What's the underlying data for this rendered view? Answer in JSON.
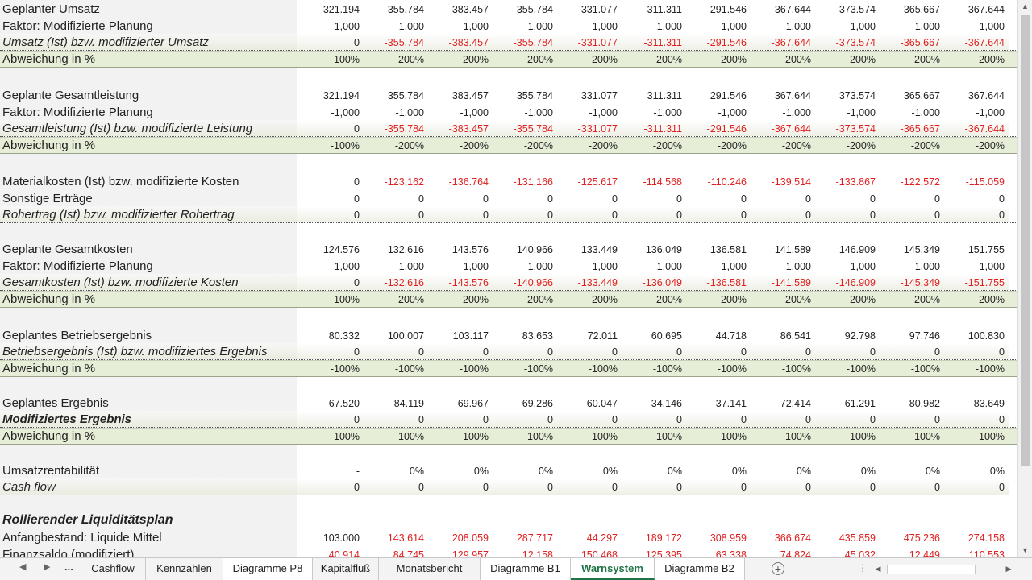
{
  "rows": [
    {
      "label": "Geplanter Umsatz",
      "style": "",
      "values": [
        "321.194",
        "355.784",
        "383.457",
        "355.784",
        "331.077",
        "311.311",
        "291.546",
        "367.644",
        "373.574",
        "365.667",
        "367.644"
      ],
      "red": []
    },
    {
      "label": "Faktor: Modifizierte Planung",
      "style": "",
      "values": [
        "-1,000",
        "-1,000",
        "-1,000",
        "-1,000",
        "-1,000",
        "-1,000",
        "-1,000",
        "-1,000",
        "-1,000",
        "-1,000",
        "-1,000"
      ],
      "red": []
    },
    {
      "label": "Umsatz (Ist) bzw. modifizierter Umsatz",
      "style": "italic dotted",
      "values": [
        "0",
        "-355.784",
        "-383.457",
        "-355.784",
        "-331.077",
        "-311.311",
        "-291.546",
        "-367.644",
        "-373.574",
        "-365.667",
        "-367.644"
      ],
      "red": [
        1,
        2,
        3,
        4,
        5,
        6,
        7,
        8,
        9,
        10
      ]
    },
    {
      "label": "Abweichung in %",
      "style": "dev",
      "values": [
        "-100%",
        "-200%",
        "-200%",
        "-200%",
        "-200%",
        "-200%",
        "-200%",
        "-200%",
        "-200%",
        "-200%",
        "-200%"
      ],
      "red": []
    },
    {
      "label": "Geplante Gesamtleistung",
      "style": "",
      "values": [
        "321.194",
        "355.784",
        "383.457",
        "355.784",
        "331.077",
        "311.311",
        "291.546",
        "367.644",
        "373.574",
        "365.667",
        "367.644"
      ],
      "red": []
    },
    {
      "label": "Faktor: Modifizierte Planung",
      "style": "",
      "values": [
        "-1,000",
        "-1,000",
        "-1,000",
        "-1,000",
        "-1,000",
        "-1,000",
        "-1,000",
        "-1,000",
        "-1,000",
        "-1,000",
        "-1,000"
      ],
      "red": []
    },
    {
      "label": "Gesamtleistung (Ist) bzw. modifizierte Leistung",
      "style": "italic dotted",
      "values": [
        "0",
        "-355.784",
        "-383.457",
        "-355.784",
        "-331.077",
        "-311.311",
        "-291.546",
        "-367.644",
        "-373.574",
        "-365.667",
        "-367.644"
      ],
      "red": [
        1,
        2,
        3,
        4,
        5,
        6,
        7,
        8,
        9,
        10
      ]
    },
    {
      "label": "Abweichung in %",
      "style": "dev",
      "values": [
        "-100%",
        "-200%",
        "-200%",
        "-200%",
        "-200%",
        "-200%",
        "-200%",
        "-200%",
        "-200%",
        "-200%",
        "-200%"
      ],
      "red": []
    },
    {
      "label": "Materialkosten (Ist) bzw. modifizierte Kosten",
      "style": "",
      "values": [
        "0",
        "-123.162",
        "-136.764",
        "-131.166",
        "-125.617",
        "-114.568",
        "-110.246",
        "-139.514",
        "-133.867",
        "-122.572",
        "-115.059"
      ],
      "red": [
        1,
        2,
        3,
        4,
        5,
        6,
        7,
        8,
        9,
        10
      ]
    },
    {
      "label": "Sonstige Erträge",
      "style": "",
      "values": [
        "0",
        "0",
        "0",
        "0",
        "0",
        "0",
        "0",
        "0",
        "0",
        "0",
        "0"
      ],
      "red": []
    },
    {
      "label": "Rohertrag (Ist) bzw. modifizierter Rohertrag",
      "style": "italic dotted",
      "values": [
        "0",
        "0",
        "0",
        "0",
        "0",
        "0",
        "0",
        "0",
        "0",
        "0",
        "0"
      ],
      "red": []
    },
    {
      "label": "Geplante Gesamtkosten",
      "style": "",
      "values": [
        "124.576",
        "132.616",
        "143.576",
        "140.966",
        "133.449",
        "136.049",
        "136.581",
        "141.589",
        "146.909",
        "145.349",
        "151.755"
      ],
      "red": []
    },
    {
      "label": "Faktor: Modifizierte Planung",
      "style": "",
      "values": [
        "-1,000",
        "-1,000",
        "-1,000",
        "-1,000",
        "-1,000",
        "-1,000",
        "-1,000",
        "-1,000",
        "-1,000",
        "-1,000",
        "-1,000"
      ],
      "red": []
    },
    {
      "label": "Gesamtkosten (Ist) bzw. modifizierte Kosten",
      "style": "italic dotted",
      "values": [
        "0",
        "-132.616",
        "-143.576",
        "-140.966",
        "-133.449",
        "-136.049",
        "-136.581",
        "-141.589",
        "-146.909",
        "-145.349",
        "-151.755"
      ],
      "red": [
        1,
        2,
        3,
        4,
        5,
        6,
        7,
        8,
        9,
        10
      ]
    },
    {
      "label": "Abweichung in %",
      "style": "dev",
      "values": [
        "-100%",
        "-200%",
        "-200%",
        "-200%",
        "-200%",
        "-200%",
        "-200%",
        "-200%",
        "-200%",
        "-200%",
        "-200%"
      ],
      "red": []
    },
    {
      "label": "Geplantes Betriebsergebnis",
      "style": "",
      "values": [
        "80.332",
        "100.007",
        "103.117",
        "83.653",
        "72.011",
        "60.695",
        "44.718",
        "86.541",
        "92.798",
        "97.746",
        "100.830"
      ],
      "red": []
    },
    {
      "label": "Betriebsergebnis (Ist) bzw. modifiziertes Ergebnis",
      "style": "italic dotted",
      "values": [
        "0",
        "0",
        "0",
        "0",
        "0",
        "0",
        "0",
        "0",
        "0",
        "0",
        "0"
      ],
      "red": []
    },
    {
      "label": "Abweichung in %",
      "style": "dev",
      "values": [
        "-100%",
        "-100%",
        "-100%",
        "-100%",
        "-100%",
        "-100%",
        "-100%",
        "-100%",
        "-100%",
        "-100%",
        "-100%"
      ],
      "red": []
    },
    {
      "label": "Geplantes Ergebnis",
      "style": "",
      "values": [
        "67.520",
        "84.119",
        "69.967",
        "69.286",
        "60.047",
        "34.146",
        "37.141",
        "72.414",
        "61.291",
        "80.982",
        "83.649"
      ],
      "red": []
    },
    {
      "label": "Modifiziertes Ergebnis",
      "style": "bold italic dotted",
      "values": [
        "0",
        "0",
        "0",
        "0",
        "0",
        "0",
        "0",
        "0",
        "0",
        "0",
        "0"
      ],
      "red": []
    },
    {
      "label": "Abweichung in %",
      "style": "dev",
      "values": [
        "-100%",
        "-100%",
        "-100%",
        "-100%",
        "-100%",
        "-100%",
        "-100%",
        "-100%",
        "-100%",
        "-100%",
        "-100%"
      ],
      "red": []
    },
    {
      "label": "Umsatzrentabilität",
      "style": "",
      "values": [
        "-",
        "0%",
        "0%",
        "0%",
        "0%",
        "0%",
        "0%",
        "0%",
        "0%",
        "0%",
        "0%"
      ],
      "red": []
    },
    {
      "label": "Cash flow",
      "style": "italic dotted",
      "values": [
        "0",
        "0",
        "0",
        "0",
        "0",
        "0",
        "0",
        "0",
        "0",
        "0",
        "0"
      ],
      "red": []
    },
    {
      "label": "Rollierender Liquiditätsplan",
      "style": "bigbold",
      "values": [],
      "red": []
    },
    {
      "label": "Anfangbestand: Liquide Mittel",
      "style": "",
      "values": [
        "103.000",
        "143.614",
        "208.059",
        "287.717",
        "44.297",
        "189.172",
        "308.959",
        "366.674",
        "435.859",
        "475.236",
        "274.158"
      ],
      "red": [
        1,
        2,
        3,
        4,
        5,
        6,
        7,
        8,
        9,
        10
      ]
    },
    {
      "label": "Finanzsaldo (modifiziert)",
      "style": "",
      "values": [
        "40.914",
        "84.745",
        "129.957",
        "12.158",
        "150.468",
        "125.395",
        "63.338",
        "74.824",
        "45.032",
        "12.449",
        "110.553"
      ],
      "red": [
        0,
        1,
        2,
        3,
        4,
        5,
        6,
        7,
        8,
        9,
        10
      ]
    }
  ],
  "tabs": {
    "nav_more": "...",
    "items": [
      "Cashflow",
      "Kennzahlen",
      "Diagramme P8",
      "Kapitalfluß",
      "Monatsbericht",
      "Diagramme B1",
      "Warnsystem",
      "Diagramme B2"
    ],
    "active": "Warnsystem"
  },
  "colors": {
    "accent": "#217346",
    "negative": "#e02020",
    "deviation_bg": "#e6eed8"
  }
}
